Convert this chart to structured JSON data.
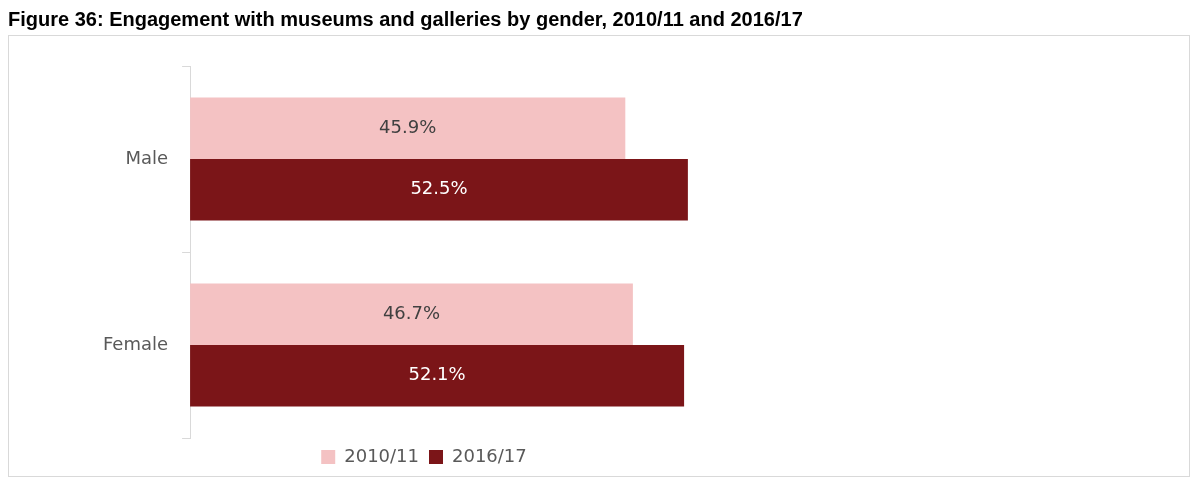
{
  "chart_data": {
    "type": "bar",
    "orientation": "horizontal",
    "title": "Figure 36: Engagement with museums and galleries by gender, 2010/11 and 2016/17",
    "categories": [
      "Male",
      "Female"
    ],
    "series": [
      {
        "name": "2010/11",
        "color": "#f4c2c3",
        "values": [
          45.9,
          46.7
        ],
        "value_labels": [
          "45.9%",
          "46.7%"
        ]
      },
      {
        "name": "2016/17",
        "color": "#7b1518",
        "values": [
          52.5,
          52.1
        ],
        "value_labels": [
          "52.5%",
          "52.1%"
        ]
      }
    ],
    "tick_labels": "y",
    "legend": "bottom"
  }
}
